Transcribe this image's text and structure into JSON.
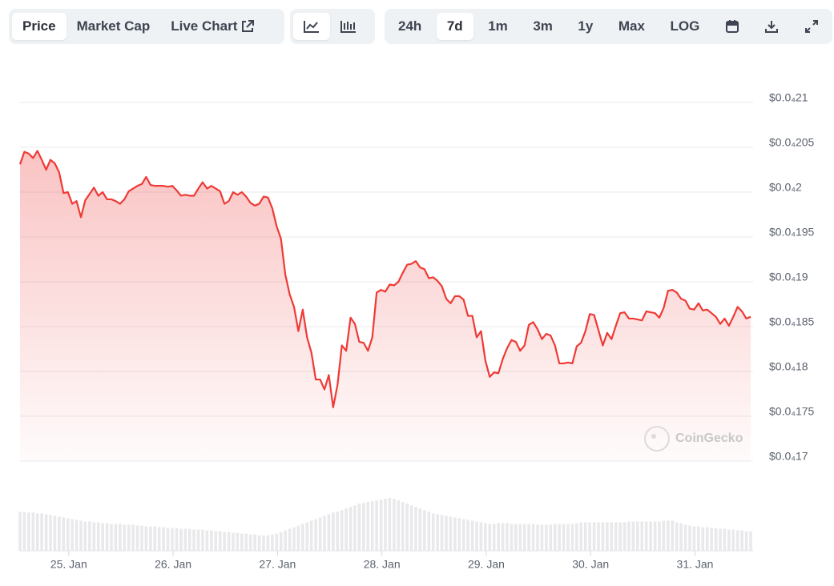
{
  "toolbar": {
    "tabs": [
      "Price",
      "Market Cap",
      "Live Chart"
    ],
    "ranges": [
      "24h",
      "7d",
      "1m",
      "3m",
      "1y",
      "Max",
      "LOG"
    ]
  },
  "watermark": "CoinGecko",
  "chart_data": {
    "type": "line",
    "color": "#ee3a35",
    "x": [
      0,
      1,
      2,
      3,
      4,
      5,
      6,
      7,
      8,
      9,
      10,
      11,
      12,
      13,
      14,
      15,
      16,
      17,
      18,
      19,
      20,
      21,
      22,
      23,
      24,
      25,
      26,
      27,
      28,
      29,
      30,
      31,
      32,
      33,
      34,
      35,
      36,
      37,
      38,
      39,
      40,
      41,
      42,
      43,
      44,
      45,
      46,
      47,
      48,
      49,
      50,
      51,
      52,
      53,
      54,
      55,
      56,
      57,
      58,
      59,
      60,
      61,
      62,
      63,
      64,
      65,
      66,
      67,
      68,
      69,
      70,
      71,
      72,
      73,
      74,
      75,
      76,
      77,
      78,
      79,
      80,
      81,
      82,
      83,
      84,
      85,
      86,
      87,
      88,
      89,
      90,
      91,
      92,
      93,
      94,
      95,
      96,
      97,
      98,
      99,
      100,
      101,
      102,
      103,
      104,
      105,
      106,
      107,
      108,
      109,
      110,
      111,
      112,
      113,
      114,
      115,
      116,
      117,
      118,
      119,
      120,
      121,
      122,
      123,
      124,
      125,
      126,
      127,
      128,
      129,
      130,
      131,
      132,
      133,
      134,
      135,
      136,
      137,
      138,
      139,
      140,
      141,
      142,
      143,
      144,
      145,
      146,
      147,
      148,
      149,
      150,
      151,
      152,
      153,
      154,
      155,
      156,
      157,
      158,
      159,
      160,
      161,
      162,
      163,
      164,
      165,
      166,
      167,
      168
    ],
    "values": [
      2.031e-05,
      2.045e-05,
      2.043e-05,
      2.038e-05,
      2.046e-05,
      2.036e-05,
      2.025e-05,
      2.036e-05,
      2.032e-05,
      2.022e-05,
      1.999e-05,
      2e-05,
      1.987e-05,
      1.99e-05,
      1.972e-05,
      1.991e-05,
      1.998e-05,
      2.005e-05,
      1.996e-05,
      2e-05,
      1.992e-05,
      1.992e-05,
      1.99e-05,
      1.987e-05,
      1.992e-05,
      2.001e-05,
      2.004e-05,
      2.007e-05,
      2.009e-05,
      2.017e-05,
      2.008e-05,
      2.007e-05,
      2.007e-05,
      2.007e-05,
      2.006e-05,
      2.007e-05,
      2.002e-05,
      1.996e-05,
      1.997e-05,
      1.996e-05,
      1.996e-05,
      2.004e-05,
      2.011e-05,
      2.004e-05,
      2.007e-05,
      2.004e-05,
      2.001e-05,
      1.987e-05,
      1.99e-05,
      2e-05,
      1.997e-05,
      2e-05,
      1.995e-05,
      1.988e-05,
      1.985e-05,
      1.987e-05,
      1.995e-05,
      1.994e-05,
      1.982e-05,
      1.962e-05,
      1.948e-05,
      1.908e-05,
      1.886e-05,
      1.872e-05,
      1.845e-05,
      1.869e-05,
      1.838e-05,
      1.821e-05,
      1.791e-05,
      1.791e-05,
      1.78e-05,
      1.796e-05,
      1.76e-05,
      1.785e-05,
      1.829e-05,
      1.823e-05,
      1.86e-05,
      1.853e-05,
      1.833e-05,
      1.832e-05,
      1.823e-05,
      1.838e-05,
      1.888e-05,
      1.891e-05,
      1.889e-05,
      1.897e-05,
      1.896e-05,
      1.9e-05,
      1.91e-05,
      1.919e-05,
      1.92e-05,
      1.923e-05,
      1.916e-05,
      1.914e-05,
      1.904e-05,
      1.905e-05,
      1.901e-05,
      1.895e-05,
      1.881e-05,
      1.876e-05,
      1.884e-05,
      1.884e-05,
      1.88e-05,
      1.862e-05,
      1.862e-05,
      1.838e-05,
      1.845e-05,
      1.812e-05,
      1.794e-05,
      1.799e-05,
      1.798e-05,
      1.814e-05,
      1.826e-05,
      1.835e-05,
      1.833e-05,
      1.823e-05,
      1.829e-05,
      1.852e-05,
      1.855e-05,
      1.847e-05,
      1.836e-05,
      1.842e-05,
      1.84e-05,
      1.829e-05,
      1.809e-05,
      1.809e-05,
      1.81e-05,
      1.809e-05,
      1.828e-05,
      1.832e-05,
      1.845e-05,
      1.864e-05,
      1.863e-05,
      1.846e-05,
      1.829e-05,
      1.843e-05,
      1.836e-05,
      1.851e-05,
      1.865e-05,
      1.866e-05,
      1.859e-05,
      1.859e-05,
      1.858e-05,
      1.857e-05,
      1.867e-05,
      1.866e-05,
      1.865e-05,
      1.86e-05,
      1.871e-05,
      1.89e-05,
      1.891e-05,
      1.888e-05,
      1.881e-05,
      1.879e-05,
      1.87e-05,
      1.869e-05,
      1.876e-05,
      1.868e-05,
      1.869e-05,
      1.865e-05,
      1.861e-05,
      1.853e-05,
      1.859e-05,
      1.851e-05,
      1.861e-05,
      1.872e-05,
      1.867e-05,
      1.859e-05,
      1.861e-05
    ],
    "volume": {
      "color": "#e9e9ec",
      "values": [
        48,
        48,
        47,
        47,
        46,
        46,
        45,
        44,
        43,
        42,
        41,
        40,
        39,
        38,
        37,
        36,
        36,
        35,
        35,
        34,
        34,
        33,
        33,
        33,
        32,
        32,
        32,
        31,
        31,
        30,
        30,
        30,
        29,
        29,
        28,
        28,
        28,
        27,
        27,
        27,
        26,
        26,
        26,
        25,
        25,
        24,
        24,
        23,
        23,
        22,
        22,
        21,
        21,
        20,
        20,
        19,
        19,
        19,
        20,
        21,
        23,
        25,
        27,
        29,
        31,
        33,
        35,
        37,
        39,
        41,
        43,
        45,
        47,
        48,
        50,
        52,
        54,
        56,
        58,
        59,
        60,
        61,
        62,
        63,
        64,
        65,
        64,
        62,
        60,
        58,
        56,
        54,
        52,
        50,
        48,
        46,
        45,
        44,
        43,
        42,
        41,
        40,
        39,
        38,
        37,
        36,
        35,
        34,
        33,
        33,
        34,
        34,
        34,
        33,
        33,
        33,
        33,
        33,
        33,
        32,
        32,
        32,
        32,
        33,
        33,
        33,
        33,
        33,
        34,
        35,
        35,
        35,
        35,
        35,
        35,
        35,
        35,
        35,
        35,
        35,
        36,
        36,
        36,
        36,
        36,
        36,
        36,
        36,
        37,
        37,
        37,
        35,
        34,
        32,
        31,
        30,
        30,
        29,
        29,
        28,
        28,
        27,
        27,
        26,
        26,
        25,
        25,
        24,
        24
      ]
    },
    "xlim": [
      0,
      168
    ],
    "xticks": [
      {
        "value": 11.2,
        "label": "25. Jan"
      },
      {
        "value": 35.2,
        "label": "26. Jan"
      },
      {
        "value": 59.2,
        "label": "27. Jan"
      },
      {
        "value": 83.2,
        "label": "28. Jan"
      },
      {
        "value": 107.2,
        "label": "29. Jan"
      },
      {
        "value": 131.2,
        "label": "30. Jan"
      },
      {
        "value": 155.2,
        "label": "31. Jan"
      }
    ],
    "ylim": [
      1.7e-05,
      2.1e-05
    ],
    "yticks": [
      {
        "value": 2.1e-05,
        "label": "$0.0₄21"
      },
      {
        "value": 2.05e-05,
        "label": "$0.0₄205"
      },
      {
        "value": 2e-05,
        "label": "$0.0₄2"
      },
      {
        "value": 1.95e-05,
        "label": "$0.0₄195"
      },
      {
        "value": 1.9e-05,
        "label": "$0.0₄19"
      },
      {
        "value": 1.85e-05,
        "label": "$0.0₄185"
      },
      {
        "value": 1.8e-05,
        "label": "$0.0₄18"
      },
      {
        "value": 1.75e-05,
        "label": "$0.0₄175"
      },
      {
        "value": 1.7e-05,
        "label": "$0.0₄17"
      }
    ],
    "grid": true
  }
}
